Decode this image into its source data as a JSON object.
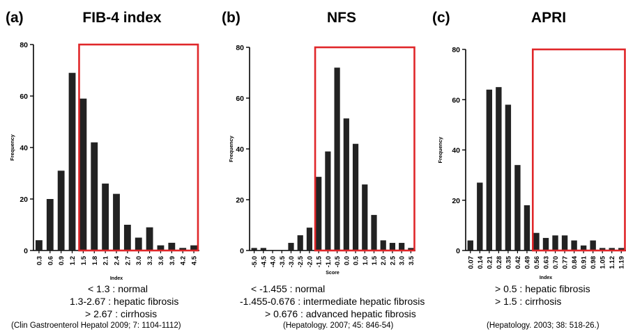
{
  "panels": [
    {
      "label": "(a)",
      "title": "FIB-4 index",
      "notes": [
        "< 1.3 : normal",
        "1.3-2.67 : hepatic fibrosis",
        "> 2.67 : cirrhosis"
      ],
      "citation": "(Clin Gastroenterol Hepatol 2009; 7: 1104-1112)"
    },
    {
      "label": "(b)",
      "title": "NFS",
      "notes": [
        "< -1.455 : normal",
        "-1.455-0.676 : intermediate hepatic fibrosis",
        "> 0.676 : advanced hepatic fibrosis"
      ],
      "citation": "(Hepatology. 2007; 45: 846-54)"
    },
    {
      "label": "(c)",
      "title": "APRI",
      "notes": [
        "> 0.5 : hepatic fibrosis",
        "> 1.5 : cirrhosis"
      ],
      "citation": "(Hepatology. 2003; 38: 518-26.)"
    }
  ],
  "colors": {
    "bar": "#222222",
    "highlight": "#e0272a",
    "axis": "#000000"
  },
  "chart_data": [
    {
      "type": "bar",
      "title": "FIB-4 index",
      "xlabel": "Index",
      "ylabel": "Frequency",
      "ylim": [
        0,
        80
      ],
      "yticks": [
        0,
        20,
        40,
        60,
        80
      ],
      "categories": [
        "0.3",
        "0.6",
        "0.9",
        "1.2",
        "1.5",
        "1.8",
        "2.1",
        "2.4",
        "2.7",
        "3.0",
        "3.3",
        "3.6",
        "3.9",
        "4.2",
        "4.5"
      ],
      "values": [
        4,
        20,
        31,
        69,
        59,
        42,
        26,
        22,
        10,
        5,
        9,
        2,
        3,
        1,
        2
      ],
      "highlight_box": {
        "from_category": "1.5",
        "to_category": "4.5",
        "top": 80
      }
    },
    {
      "type": "bar",
      "title": "NFS",
      "xlabel": "Score",
      "ylabel": "Frequency",
      "ylim": [
        0,
        80
      ],
      "yticks": [
        0,
        20,
        40,
        60,
        80
      ],
      "categories": [
        "-5.0",
        "-4.5",
        "-4.0",
        "-3.5",
        "-3.0",
        "-2.5",
        "-2.0",
        "-1.5",
        "-1.0",
        "-0.5",
        "0.0",
        "0.5",
        "1.0",
        "1.5",
        "2.0",
        "2.5",
        "3.0",
        "3.5"
      ],
      "values": [
        1,
        1,
        0,
        0,
        3,
        6,
        9,
        29,
        39,
        72,
        52,
        42,
        26,
        14,
        4,
        3,
        3,
        1
      ],
      "highlight_box": {
        "from_category": "-1.5",
        "to_category": "3.5",
        "top": 80
      }
    },
    {
      "type": "bar",
      "title": "APRI",
      "xlabel": "Index",
      "ylabel": "Frequency",
      "ylim": [
        0,
        80
      ],
      "yticks": [
        0,
        20,
        40,
        60,
        80
      ],
      "categories": [
        "0.07",
        "0.14",
        "0.21",
        "0.28",
        "0.35",
        "0.42",
        "0.49",
        "0.56",
        "0.63",
        "0.70",
        "0.77",
        "0.84",
        "0.91",
        "0.98",
        "1.05",
        "1.12",
        "1.19"
      ],
      "values": [
        4,
        27,
        64,
        65,
        58,
        34,
        18,
        7,
        5,
        6,
        6,
        4,
        2,
        4,
        1,
        1,
        1
      ],
      "highlight_box": {
        "from_category": "0.56",
        "to_category": "1.19",
        "top": 80
      }
    }
  ]
}
